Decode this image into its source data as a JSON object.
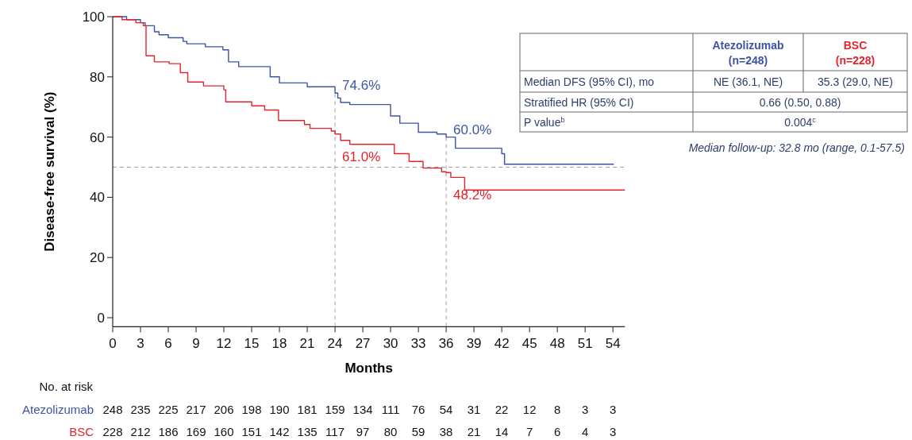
{
  "chart_data": {
    "type": "step",
    "xlabel": "Months",
    "ylabel": "Disease-free survival (%)",
    "xlim": [
      0,
      55.3
    ],
    "ylim": [
      -3,
      100
    ],
    "xticks": [
      0,
      3,
      6,
      9,
      12,
      15,
      18,
      21,
      24,
      27,
      30,
      33,
      36,
      39,
      42,
      45,
      48,
      51,
      54
    ],
    "yticks": [
      0,
      20,
      40,
      60,
      80,
      100
    ],
    "series": [
      {
        "name": "Atezolizumab",
        "color": "#3b54a5",
        "x": [
          0,
          1.5,
          3,
          3.5,
          4.5,
          5,
          6,
          7.6,
          8,
          10,
          11.9,
          12.5,
          13.6,
          16.4,
          17,
          18,
          21,
          24,
          24.3,
          24.6,
          25.6,
          29,
          30,
          31,
          33,
          35,
          36,
          37,
          42,
          42.3,
          54.1
        ],
        "values": [
          100,
          99,
          98,
          97,
          95,
          94,
          93,
          91.8,
          91,
          90,
          89,
          85,
          83.4,
          83.4,
          80,
          78,
          76.7,
          74.6,
          73,
          71.5,
          70.8,
          70.8,
          67,
          64.6,
          61.6,
          61,
          60,
          56.3,
          54.5,
          51,
          51
        ]
      },
      {
        "name": "BSC",
        "color": "#e5232b",
        "x": [
          0,
          1,
          2.5,
          3.3,
          3.6,
          4.5,
          6.1,
          7.3,
          8.1,
          9.8,
          12,
          12.2,
          15,
          16.4,
          17.9,
          20.7,
          21.3,
          23.6,
          24,
          24.6,
          25.6,
          29,
          30.4,
          32,
          33.5,
          35.5,
          36,
          36.5,
          38,
          55.3
        ],
        "values": [
          100,
          99,
          98,
          97,
          87,
          85,
          84.4,
          81.4,
          78.3,
          77,
          75.7,
          71.7,
          70.4,
          69,
          65.5,
          64.2,
          62.9,
          62,
          61,
          58.9,
          57.6,
          57.6,
          54.5,
          51.9,
          49.7,
          48.5,
          48.2,
          46.6,
          42.4,
          42.4
        ]
      }
    ],
    "ref_lines": [
      {
        "axis": "y",
        "value": 50,
        "color": "#a0a0a0",
        "line_style": "dashed"
      },
      {
        "axis": "x",
        "value": 24,
        "color": "#a0a0a0",
        "line_style": "dashed"
      },
      {
        "axis": "x",
        "value": 36,
        "color": "#a0a0a0",
        "line_style": "dashed"
      }
    ],
    "annotations": [
      "74.6%",
      "61.0%",
      "60.0%",
      "48.2%",
      "Median follow-up: 32.8 mo (range, 0.1-57.5)",
      "No. at risk",
      "248 235 225 217 206 198 190 181 159 134 111 76 54 31 22 12 8 3 3",
      "228 212 186 169 160 151 142 135 117 97 80 59 38 21 14 7 6 4 3",
      "(n=248)",
      "(n=228)",
      "Median DFS (95% CI), mo",
      "NE (36.1, NE)",
      "35.3 (29.0, NE)",
      "Stratified HR (95% CI)",
      "0.66 (0.50, 0.88)",
      "P value$^{b}$",
      "0.004$^{c}$"
    ]
  }
}
